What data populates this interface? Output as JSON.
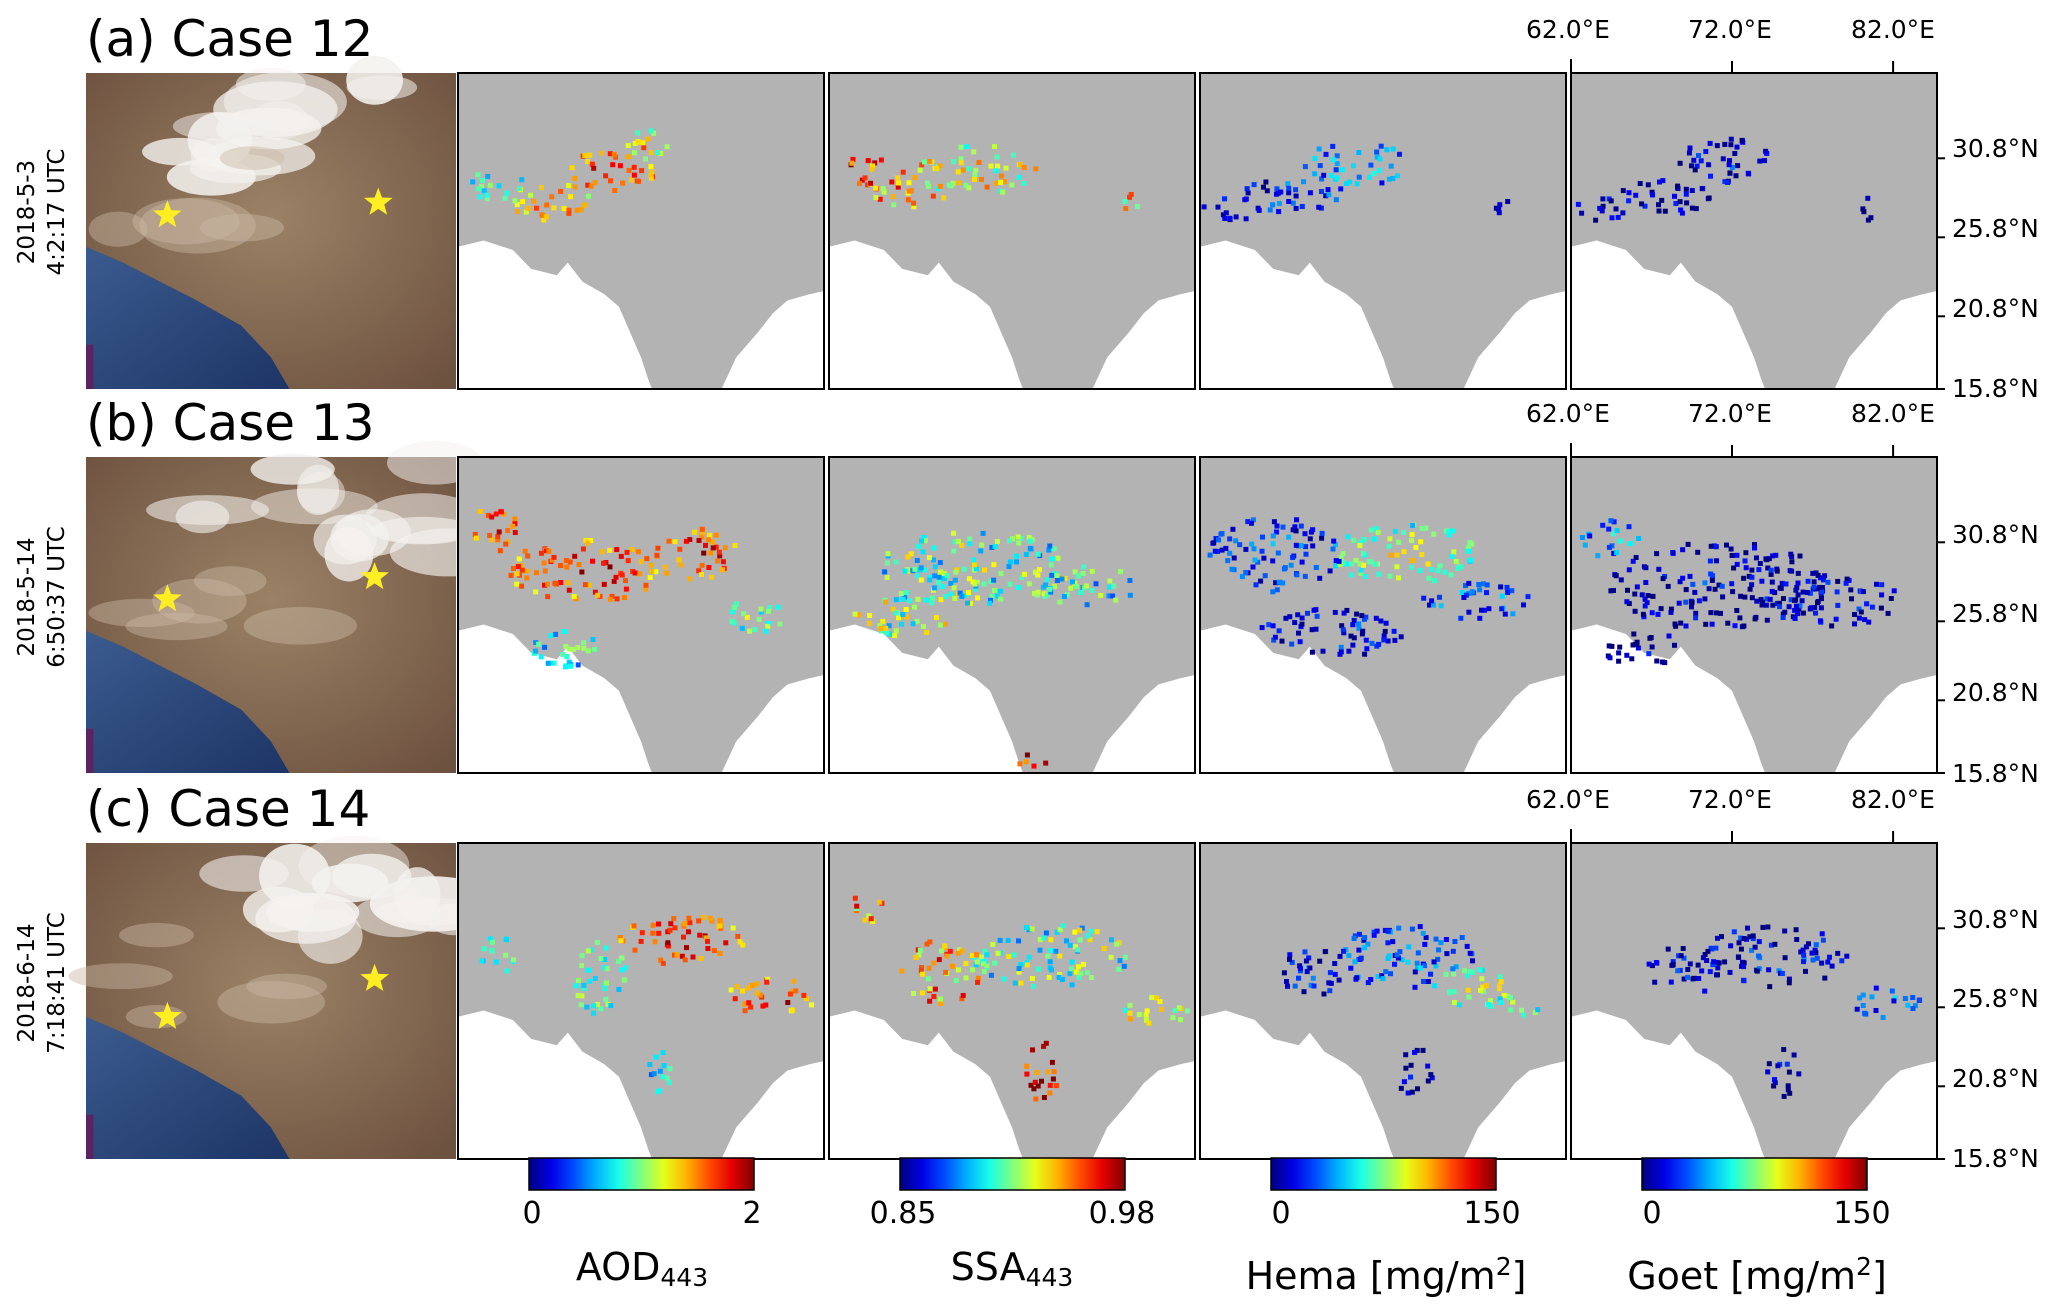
{
  "rows": [
    {
      "title": "(a) Case 12",
      "date": "2018-5-3",
      "time": "4:2:17 UTC",
      "seed": 3
    },
    {
      "title": "(b) Case 13",
      "date": "2018-5-14",
      "time": "6:50:37 UTC",
      "seed": 7
    },
    {
      "title": "(c) Case 14",
      "date": "2018-6-14",
      "time": "7:18:41 UTC",
      "seed": 11
    }
  ],
  "lon_ticks": [
    "62.0°E",
    "72.0°E",
    "82.0°E"
  ],
  "lat_ticks": [
    "30.8°N",
    "25.8°N",
    "20.8°N",
    "15.8°N"
  ],
  "colorbars": [
    {
      "min": "0",
      "max": "2",
      "label_main": "AOD",
      "label_sub": "443",
      "label_tail": "",
      "label_sup": ""
    },
    {
      "min": "0.85",
      "max": "0.98",
      "label_main": "SSA",
      "label_sub": "443",
      "label_tail": "",
      "label_sup": ""
    },
    {
      "min": "0",
      "max": "150",
      "label_main": "Hema [mg/m",
      "label_sub": "",
      "label_tail": "]",
      "label_sup": "2"
    },
    {
      "min": "0",
      "max": "150",
      "label_main": "Goet [mg/m",
      "label_sub": "",
      "label_tail": "]",
      "label_sup": "2"
    }
  ],
  "colors": {
    "land": "#b3b3b3",
    "ocean": "#ffffff",
    "star": "#ffee22",
    "colormap": "jet"
  }
}
